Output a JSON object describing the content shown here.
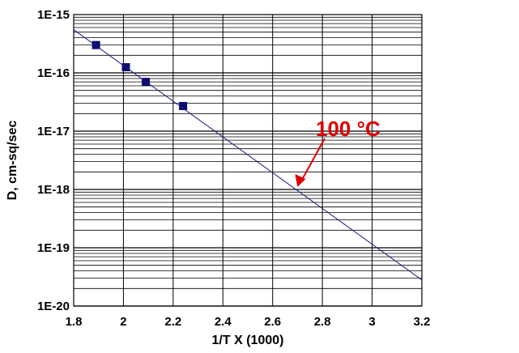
{
  "chart_data": {
    "type": "scatter",
    "xlabel": "1/T  X (1000)",
    "ylabel": "D, cm-sq/sec",
    "xlim": [
      1.8,
      3.2
    ],
    "ylim": [
      1e-20,
      1e-15
    ],
    "y_scale": "log",
    "grid": true,
    "x_ticks": [
      "1.8",
      "2",
      "2.2",
      "2.4",
      "2.6",
      "2.8",
      "3",
      "3.2"
    ],
    "y_ticks": [
      "1E-20",
      "1E-19",
      "1E-18",
      "1E-17",
      "1E-16",
      "1E-15"
    ],
    "series": [
      {
        "marker": "square",
        "color": "#0a0a6e",
        "points": [
          {
            "x": 1.89,
            "y": 3e-16
          },
          {
            "x": 2.01,
            "y": 1.25e-16
          },
          {
            "x": 2.09,
            "y": 7e-17
          },
          {
            "x": 2.24,
            "y": 2.7e-17
          }
        ]
      },
      {
        "style": "line",
        "color": "#1a1a80",
        "points": [
          {
            "x": 1.8,
            "y": 5.5e-16
          },
          {
            "x": 3.2,
            "y": 2.8e-20
          }
        ]
      }
    ],
    "annotations": [
      {
        "text": "100 °C",
        "color": "#e00000",
        "arrow_to": {
          "x": 2.7,
          "y": 1.1e-18
        }
      }
    ]
  }
}
